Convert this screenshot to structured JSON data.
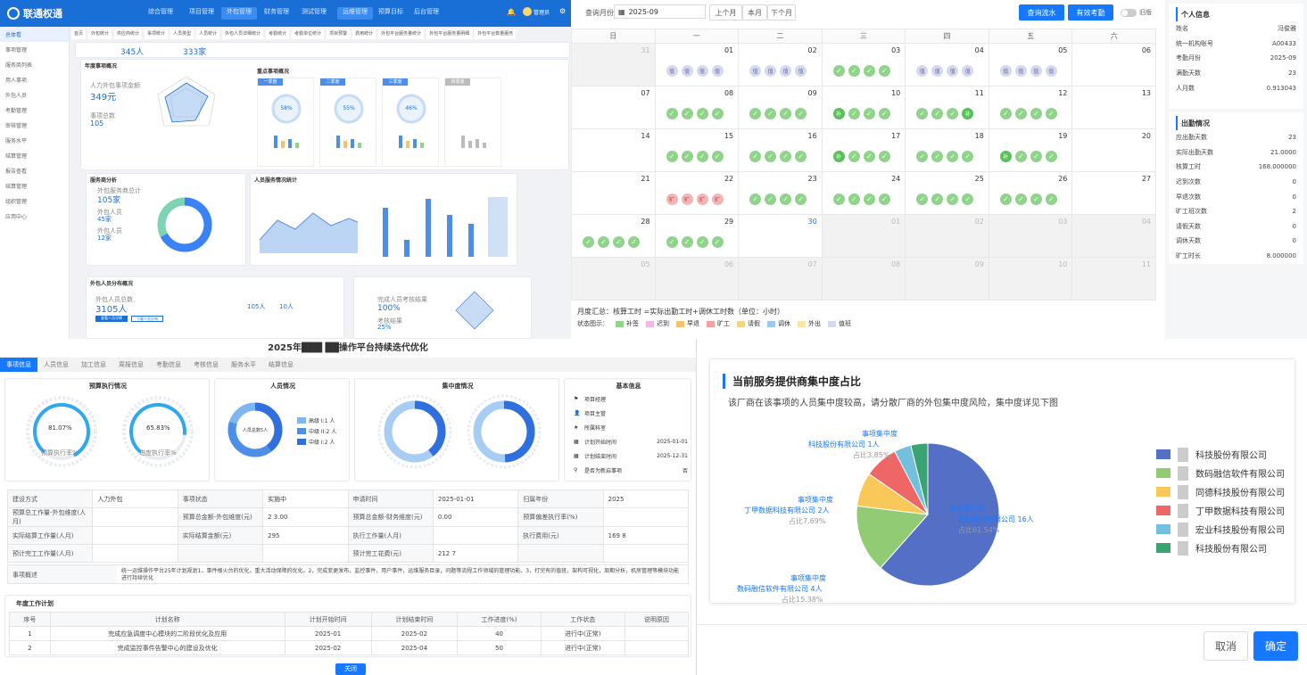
{
  "p1": {
    "logo": "联通权通",
    "nav": [
      "综合管理",
      "项目管理",
      "外包管理",
      "财务管理",
      "测试管理",
      "运维管理",
      "预算目标",
      "后台管理"
    ],
    "user": "管理员",
    "side": [
      "总体看",
      "事项管理",
      "服务商列表",
      "用人事项",
      "外包人员",
      "考勤管理",
      "审核管理",
      "服务水平",
      "结算管理",
      "报告查看",
      "结算管理",
      "组织管理",
      "应用中心"
    ],
    "crumbs": [
      "首页",
      "外包统计",
      "供应商统计",
      "事项统计",
      "人员类型",
      "人员统计",
      "外包人员详细统计",
      "考勤统计",
      "考勤单位统计",
      "项目预警",
      "费用统计",
      "外包平台服务量统计",
      "外包平台服务量明细",
      "外包平台数量服务"
    ],
    "stat1": "345人",
    "stat2": "333家",
    "sec1": "年度事项概况",
    "sec2": "重点事项概况",
    "sec3": "服务商分析",
    "sec4": "人员服务情况统计",
    "sec5": "外包人员分布概况",
    "kpi_label1": "人力外包事项金额",
    "kpi_val1": "349元",
    "kpi_label2": "事项总数",
    "kpi_val2": "105",
    "g1": "58%",
    "g2": "55%",
    "g3": "46%",
    "gt1": "一季度",
    "gt2": "二季度",
    "gt3": "三季度",
    "gt4": "四季度",
    "svc_label": "外包服务商总计",
    "svc_val": "105家",
    "svc_l2": "外包人员",
    "svc_v2": "45家",
    "svc_l3": "外包人员",
    "svc_v3": "12家",
    "bot_label": "外包人员总数",
    "bot_val": "3105人",
    "bot_a": "105人",
    "bot_b": "10人",
    "bot_btn1": "查看人员详情",
    "bot_btn2": "下载人员分布",
    "rp_label": "完成人员考核结果",
    "rp_val": "100%",
    "rp_l2": "考核结果",
    "rp_v2": "25%"
  },
  "p2": {
    "month_label": "查询月份",
    "month_val": "2025-09",
    "btn_prev": "上个月",
    "btn_cur": "本月",
    "btn_next": "下个月",
    "btn_flow": "查询流水",
    "btn_valid": "有效考勤",
    "toggle": "旧版",
    "weekdays": [
      "日",
      "一",
      "二",
      "三",
      "四",
      "五",
      "六"
    ],
    "weeks": [
      [
        {
          "d": "31",
          "g": true
        },
        {
          "d": "01",
          "m": "bbbb"
        },
        {
          "d": "02",
          "m": "bbbb"
        },
        {
          "d": "03",
          "m": "kkkk"
        },
        {
          "d": "04",
          "m": "bbbb"
        },
        {
          "d": "05",
          "m": "bbbb"
        },
        {
          "d": "06"
        }
      ],
      [
        {
          "d": "07"
        },
        {
          "d": "08",
          "m": "kkkk"
        },
        {
          "d": "09",
          "m": "kkkk"
        },
        {
          "d": "10",
          "m": "gkkk"
        },
        {
          "d": "11",
          "m": "kkkg"
        },
        {
          "d": "12",
          "m": "kkkk"
        },
        {
          "d": "13"
        }
      ],
      [
        {
          "d": "14"
        },
        {
          "d": "15",
          "m": "kkkk"
        },
        {
          "d": "16",
          "m": "kkkk"
        },
        {
          "d": "17",
          "m": "gkkk"
        },
        {
          "d": "18",
          "m": "kkkk"
        },
        {
          "d": "19",
          "m": "gkkk"
        },
        {
          "d": "20"
        }
      ],
      [
        {
          "d": "21"
        },
        {
          "d": "22",
          "m": "rrrr"
        },
        {
          "d": "23",
          "m": "kkkk"
        },
        {
          "d": "24",
          "m": "kkkk"
        },
        {
          "d": "25",
          "m": "kkkk"
        },
        {
          "d": "26",
          "m": "kkkk"
        },
        {
          "d": "27"
        }
      ],
      [
        {
          "d": "28",
          "m": "kkkk"
        },
        {
          "d": "29",
          "m": "kkkk"
        },
        {
          "d": "30",
          "b": true
        },
        {
          "d": "01",
          "g": true
        },
        {
          "d": "02",
          "g": true
        },
        {
          "d": "03",
          "g": true
        },
        {
          "d": "04",
          "g": true
        }
      ],
      [
        {
          "d": "05",
          "g": true
        },
        {
          "d": "06",
          "g": true
        },
        {
          "d": "07",
          "g": true
        },
        {
          "d": "08",
          "g": true
        },
        {
          "d": "09",
          "g": true
        },
        {
          "d": "10",
          "g": true
        },
        {
          "d": "11",
          "g": true
        }
      ]
    ],
    "mark_b": "值",
    "mark_g": "补",
    "mark_r": "旷",
    "summary": "月度汇总：核算工时 =实际出勤工时+调休工时数（单位：小时）",
    "legend_label": "状态图示：",
    "legend": [
      {
        "t": "补签",
        "c": "#8fd48a"
      },
      {
        "t": "迟到",
        "c": "#f0b8e6"
      },
      {
        "t": "早退",
        "c": "#f6c26b"
      },
      {
        "t": "旷工",
        "c": "#f6a0a0"
      },
      {
        "t": "请假",
        "c": "#f2d488"
      },
      {
        "t": "调休",
        "c": "#9cc9f2"
      },
      {
        "t": "外出",
        "c": "#f6e6a8"
      },
      {
        "t": "值班",
        "c": "#d6d8ee"
      }
    ],
    "info_title": "个人信息",
    "info": [
      {
        "k": "姓名",
        "v": "冯俊雅"
      },
      {
        "k": "统一机构账号",
        "v": "A00433"
      },
      {
        "k": "考勤月份",
        "v": "2025-09"
      },
      {
        "k": "满勤天数",
        "v": "23"
      },
      {
        "k": "人月数",
        "v": "0.913043"
      }
    ],
    "att_title": "出勤情况",
    "att": [
      {
        "k": "应出勤天数",
        "v": "23"
      },
      {
        "k": "实际出勤天数",
        "v": "21.0000"
      },
      {
        "k": "核算工时",
        "v": "168.000000"
      },
      {
        "k": "迟到次数",
        "v": "0"
      },
      {
        "k": "早退次数",
        "v": "0"
      },
      {
        "k": "旷工班次数",
        "v": "2"
      },
      {
        "k": "请假天数",
        "v": "0"
      },
      {
        "k": "调休天数",
        "v": "0"
      },
      {
        "k": "旷工时长",
        "v": "8.000000"
      }
    ]
  },
  "p3": {
    "title": "2025年███ ██操作平台持续迭代优化",
    "tabs": [
      "事项信息",
      "人员信息",
      "加工信息",
      "周报信息",
      "考勤信息",
      "考核信息",
      "服务水平",
      "结算信息"
    ],
    "c1": "预算执行情况",
    "c2": "人员情况",
    "c3": "集中度情况",
    "c4": "基本信息",
    "g1v": "81.07%",
    "g1l": "预算执行率%",
    "g2v": "65.83%",
    "g2l": "进度执行率%",
    "donut1": "人员总数5人",
    "lg": [
      {
        "t": "高级 I:1 人",
        "c": "#7fb6f2"
      },
      {
        "t": "中级 II:2 人",
        "c": "#4d8fe8"
      },
      {
        "t": "中级 I:2 人",
        "c": "#2f6fde"
      }
    ],
    "d2a": "人员集中度",
    "d2b": "人员占比40%",
    "d3a": "费用集中度",
    "d3b": "金额占比49.57%",
    "basic": [
      {
        "k": "项目经理",
        "v": ""
      },
      {
        "k": "项目主管",
        "v": ""
      },
      {
        "k": "所属科室",
        "v": ""
      },
      {
        "k": "计划开始时间",
        "v": "2025-01-01"
      },
      {
        "k": "计划结束时间",
        "v": "2025-12-31"
      },
      {
        "k": "是否为新启事项",
        "v": "否"
      }
    ],
    "rows": [
      [
        "建设方式",
        "人力外包",
        "事项状态",
        "实施中",
        "申请时间",
        "2025-01-01",
        "归属年份",
        "2025"
      ],
      [
        "预算总工作量-外包维度(人月)",
        "",
        "预算总金额-外包维度(元)",
        "2 3.00",
        "预算总金额-财务维度(元)",
        "0.00",
        "预算偏差执行率(%)",
        ""
      ],
      [
        "实际结算工作量(人月)",
        "",
        "实际结算金额(元)",
        "295",
        "执行工作量(人月)",
        "",
        "执行费用(元)",
        "169 8"
      ],
      [
        "预计完工工作量(人月)",
        "",
        "",
        "",
        "预计完工花费(元)",
        "212 7",
        "",
        ""
      ]
    ],
    "desc_k": "事项概述",
    "desc_v": "统一运维操作平台25年计划规划1，事件根火台的优化，重大活动保障的优化。2，完成变更发布，监控事件，用户事件，运维服务目录，问题等流程工作领域的管理功能。3，打完有的值班，架构可视化，周期分析，机房管理等模块功能进行持续优化",
    "plan_title": "年度工作计划",
    "plan_head": [
      "序号",
      "计划名称",
      "计划开始时间",
      "计划结束时间",
      "工作进度(%)",
      "工作状态",
      "说明原因"
    ],
    "plan": [
      [
        "1",
        "完成应急调度中心模块的二阶段优化及应用",
        "2025-01",
        "2025-02",
        "40",
        "进行中(正常)",
        ""
      ],
      [
        "2",
        "完成监控事件告警中心的建设及优化",
        "2025-02",
        "2025-04",
        "50",
        "进行中(正常)",
        ""
      ]
    ],
    "close": "关闭"
  },
  "p4": {
    "title": "当前服务提供商集中度占比",
    "subtitle": "该厂商在该事项的人员集中度较高，请分散厂商的外包集中度风险，集中度详见下图",
    "slices": [
      {
        "value": 61.54,
        "color": "#5470c6"
      },
      {
        "value": 15.38,
        "color": "#91cc75"
      },
      {
        "value": 7.69,
        "color": "#fac858"
      },
      {
        "value": 7.69,
        "color": "#ee6666"
      },
      {
        "value": 3.85,
        "color": "#73c0de"
      },
      {
        "value": 3.85,
        "color": "#3ba272"
      }
    ],
    "labels": [
      {
        "t1": "事项集中度",
        "t2": "科技股份有限公司 16人",
        "t3": "占比61.54%"
      },
      {
        "t1": "事项集中度",
        "t2": "数码融信软件有限公司 4人",
        "t3": "占比15.38%"
      },
      {
        "t1": "事项集中度",
        "t2": "丁甲数据科技有限公司 2人",
        "t3": "占比7.69%"
      },
      {
        "t1": "事项集中度",
        "t2": "科技股份有限公司 1人",
        "t3": "占比3.85%"
      }
    ],
    "legend": [
      {
        "t": "科技股份有限公司",
        "c": "#5470c6"
      },
      {
        "t": "数码融信软件有限公司",
        "c": "#91cc75"
      },
      {
        "t": "同德科技股份有限公司",
        "c": "#fac858"
      },
      {
        "t": "丁甲数据科技有限公司",
        "c": "#ee6666"
      },
      {
        "t": "宏业科技股份有限公司",
        "c": "#73c0de"
      },
      {
        "t": "科技股份有限公司",
        "c": "#3ba272"
      }
    ],
    "cancel": "取消",
    "ok": "确定"
  }
}
